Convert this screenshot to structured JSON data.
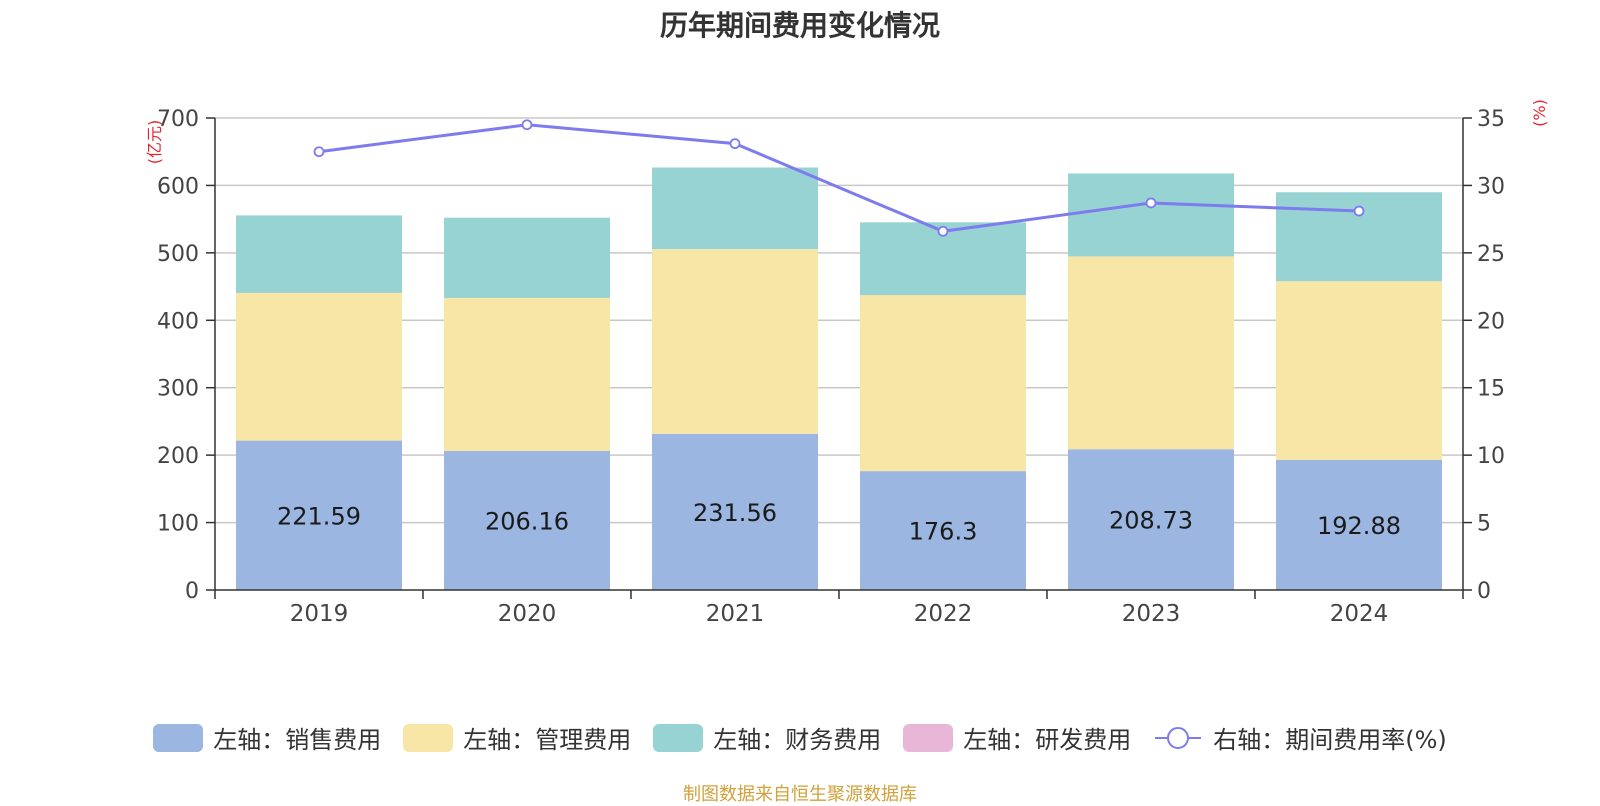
{
  "chart_data": {
    "type": "bar",
    "title": "历年期间费用变化情况",
    "categories": [
      "2019",
      "2020",
      "2021",
      "2022",
      "2023",
      "2024"
    ],
    "left_axis": {
      "unit_label": "(亿元)",
      "ylim": [
        0,
        700
      ],
      "ticks": [
        "0",
        "100",
        "200",
        "300",
        "400",
        "500",
        "600",
        "700"
      ]
    },
    "right_axis": {
      "unit_label": "(%)",
      "ylim": [
        0,
        35
      ],
      "ticks": [
        "0",
        "5",
        "10",
        "15",
        "20",
        "25",
        "30",
        "35"
      ]
    },
    "grid": true,
    "legend_position": "bottom",
    "series": [
      {
        "name": "左轴：销售费用",
        "axis": "left",
        "kind": "bar",
        "color": "#9bb6e0",
        "values": [
          221.59,
          206.16,
          231.56,
          176.3,
          208.73,
          192.88
        ],
        "data_labels": [
          "221.59",
          "206.16",
          "231.56",
          "176.3",
          "208.73",
          "192.88"
        ]
      },
      {
        "name": "左轴：管理费用",
        "axis": "left",
        "kind": "bar",
        "color": "#f7e6a6",
        "values": [
          219,
          227,
          274,
          261,
          286,
          265
        ]
      },
      {
        "name": "左轴：财务费用",
        "axis": "left",
        "kind": "bar",
        "color": "#97d3d3",
        "values": [
          115,
          119,
          121,
          108,
          123,
          132
        ]
      },
      {
        "name": "左轴：研发费用",
        "axis": "left",
        "kind": "bar",
        "color": "#e8b7d7",
        "values": [
          0,
          0,
          0,
          0,
          0,
          0
        ]
      },
      {
        "name": "右轴：期间费用率(%)",
        "axis": "right",
        "kind": "line",
        "color": "#7d7bee",
        "values": [
          32.5,
          34.5,
          33.1,
          26.6,
          28.7,
          28.1
        ]
      }
    ]
  },
  "source_note": "制图数据来自恒生聚源数据库"
}
